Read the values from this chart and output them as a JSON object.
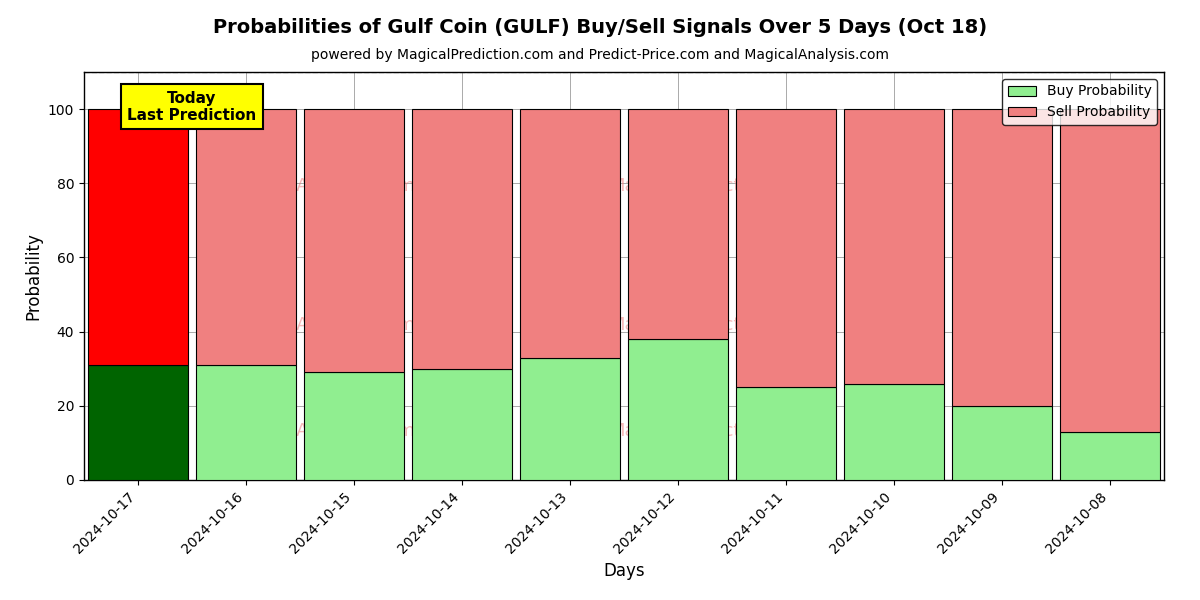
{
  "title": "Probabilities of Gulf Coin (GULF) Buy/Sell Signals Over 5 Days (Oct 18)",
  "subtitle": "powered by MagicalPrediction.com and Predict-Price.com and MagicalAnalysis.com",
  "xlabel": "Days",
  "ylabel": "Probability",
  "dates": [
    "2024-10-17",
    "2024-10-16",
    "2024-10-15",
    "2024-10-14",
    "2024-10-13",
    "2024-10-12",
    "2024-10-11",
    "2024-10-10",
    "2024-10-09",
    "2024-10-08"
  ],
  "buy_probs": [
    31,
    31,
    29,
    30,
    33,
    38,
    25,
    26,
    20,
    13
  ],
  "sell_probs": [
    69,
    69,
    71,
    70,
    67,
    62,
    75,
    74,
    80,
    87
  ],
  "today_index": 0,
  "today_buy_color": "#006400",
  "today_sell_color": "#ff0000",
  "other_buy_color": "#90ee90",
  "other_sell_color": "#f08080",
  "bar_edge_color": "#000000",
  "ylim": [
    0,
    110
  ],
  "dashed_line_y": 110,
  "legend_buy_label": "Buy Probability",
  "legend_sell_label": "Sell Probability",
  "today_label_line1": "Today",
  "today_label_line2": "Last Prediction",
  "today_box_color": "#ffff00",
  "grid_color": "#aaaaaa",
  "title_fontsize": 14,
  "subtitle_fontsize": 10,
  "axis_label_fontsize": 12,
  "tick_fontsize": 10,
  "legend_fontsize": 10,
  "bar_width": 0.93
}
